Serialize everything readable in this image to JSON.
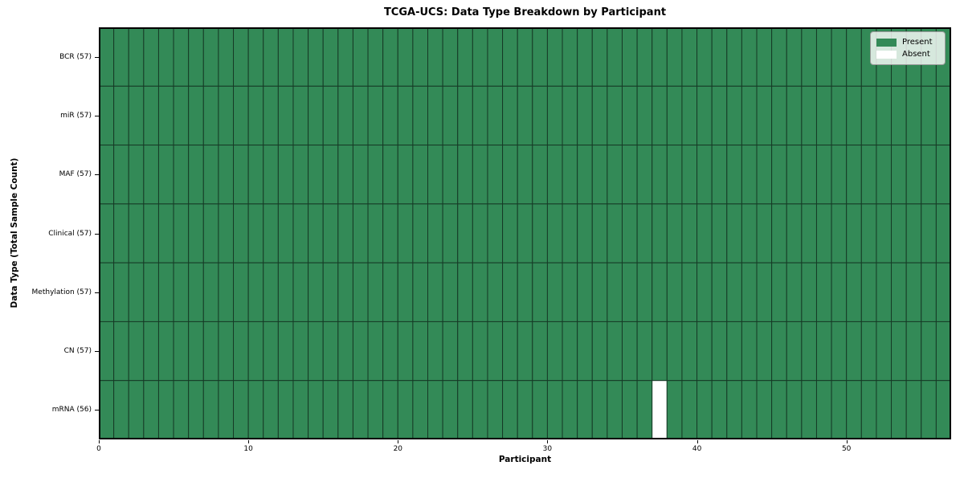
{
  "title": "TCGA-UCS: Data Type Breakdown by Participant",
  "chart_data": {
    "type": "heatmap",
    "title": "TCGA-UCS: Data Type Breakdown by Participant",
    "xlabel": "Participant",
    "ylabel": "Data Type (Total Sample Count)",
    "x_range": [
      0,
      57
    ],
    "n_participants": 57,
    "x_ticks": [
      0,
      10,
      20,
      30,
      40,
      50
    ],
    "grid": "cell-edges",
    "legend_position": "upper right",
    "rows": [
      {
        "label": "BCR (57)",
        "total": 57,
        "absent_participants": []
      },
      {
        "label": "miR (57)",
        "total": 57,
        "absent_participants": []
      },
      {
        "label": "MAF (57)",
        "total": 57,
        "absent_participants": []
      },
      {
        "label": "Clinical (57)",
        "total": 57,
        "absent_participants": []
      },
      {
        "label": "Methylation (57)",
        "total": 57,
        "absent_participants": []
      },
      {
        "label": "CN (57)",
        "total": 57,
        "absent_participants": []
      },
      {
        "label": "mRNA (56)",
        "total": 56,
        "absent_participants": [
          37
        ]
      }
    ],
    "legend": [
      {
        "label": "Present",
        "color": "#338a57"
      },
      {
        "label": "Absent",
        "color": "#ffffff"
      }
    ],
    "colors": {
      "present": "#338a57",
      "absent": "#ffffff",
      "cell_edge": "#163a26",
      "spine": "#000000"
    }
  }
}
